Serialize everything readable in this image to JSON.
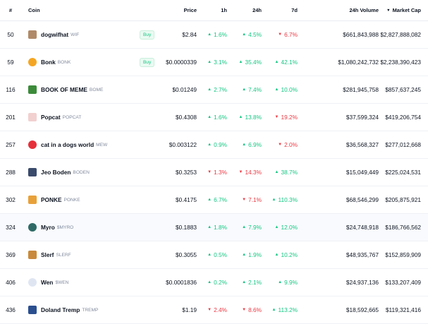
{
  "header": {
    "rank": "#",
    "coin": "Coin",
    "price": "Price",
    "h1": "1h",
    "h24": "24h",
    "d7": "7d",
    "volume": "24h Volume",
    "mcap": "Market Cap",
    "sort_icon": "triangle-down-icon"
  },
  "colors": {
    "up": "#16c784",
    "down": "#ea3943",
    "buy": "#16c784"
  },
  "rows": [
    {
      "rank": "50",
      "name": "dogwifhat",
      "symbol": "WIF",
      "buy": "Buy",
      "price": "$2.84",
      "h1": "1.6%",
      "h1_dir": "up",
      "h24": "4.5%",
      "h24_dir": "up",
      "d7": "6.7%",
      "d7_dir": "down",
      "volume": "$661,843,988",
      "mcap": "$2,827,888,082",
      "icon_color": "#b08a68",
      "icon": "dog-hat-icon"
    },
    {
      "rank": "59",
      "name": "Bonk",
      "symbol": "BONK",
      "buy": "Buy",
      "price": "$0.0000339",
      "h1": "3.1%",
      "h1_dir": "up",
      "h24": "35.4%",
      "h24_dir": "up",
      "d7": "42.1%",
      "d7_dir": "up",
      "volume": "$1,080,242,732",
      "mcap": "$2,238,390,423",
      "icon_color": "#f4a623",
      "icon": "bonk-dog-icon"
    },
    {
      "rank": "116",
      "name": "BOOK OF MEME",
      "symbol": "BOME",
      "price": "$0.01249",
      "h1": "2.7%",
      "h1_dir": "up",
      "h24": "7.4%",
      "h24_dir": "up",
      "d7": "10.0%",
      "d7_dir": "up",
      "volume": "$281,945,758",
      "mcap": "$857,637,245",
      "icon_color": "#3c8b3a",
      "icon": "pepe-book-icon"
    },
    {
      "rank": "201",
      "name": "Popcat",
      "symbol": "POPCAT",
      "price": "$0.4308",
      "h1": "1.6%",
      "h1_dir": "up",
      "h24": "13.8%",
      "h24_dir": "up",
      "d7": "19.2%",
      "d7_dir": "down",
      "volume": "$37,599,324",
      "mcap": "$419,206,754",
      "icon_color": "#f2d0d0",
      "icon": "pop-cat-icon"
    },
    {
      "rank": "257",
      "name": "cat in a dogs world",
      "symbol": "MEW",
      "price": "$0.003122",
      "h1": "0.9%",
      "h1_dir": "up",
      "h24": "6.9%",
      "h24_dir": "up",
      "d7": "2.0%",
      "d7_dir": "down",
      "volume": "$36,568,327",
      "mcap": "$277,012,668",
      "icon_color": "#e5303a",
      "icon": "mew-cat-icon"
    },
    {
      "rank": "288",
      "name": "Jeo Boden",
      "symbol": "BODEN",
      "price": "$0.3253",
      "h1": "1.3%",
      "h1_dir": "down",
      "h24": "14.3%",
      "h24_dir": "down",
      "d7": "38.7%",
      "d7_dir": "up",
      "volume": "$15,049,449",
      "mcap": "$225,024,531",
      "icon_color": "#3a4a6b",
      "icon": "boden-portrait-icon"
    },
    {
      "rank": "302",
      "name": "PONKE",
      "symbol": "PONKE",
      "price": "$0.4175",
      "h1": "6.7%",
      "h1_dir": "up",
      "h24": "7.1%",
      "h24_dir": "down",
      "d7": "110.3%",
      "d7_dir": "up",
      "volume": "$68,546,299",
      "mcap": "$205,875,921",
      "icon_color": "#e8a13a",
      "icon": "ponke-monkey-icon"
    },
    {
      "rank": "324",
      "name": "Myro",
      "symbol": "$MYRO",
      "price": "$0.1883",
      "h1": "1.8%",
      "h1_dir": "up",
      "h24": "7.9%",
      "h24_dir": "up",
      "d7": "12.0%",
      "d7_dir": "up",
      "volume": "$24,748,918",
      "mcap": "$186,766,562",
      "icon_color": "#2f6a66",
      "icon": "myro-dog-icon"
    },
    {
      "rank": "369",
      "name": "Slerf",
      "symbol": "SLERF",
      "price": "$0.3055",
      "h1": "0.5%",
      "h1_dir": "up",
      "h24": "1.9%",
      "h24_dir": "up",
      "d7": "10.2%",
      "d7_dir": "up",
      "volume": "$48,935,767",
      "mcap": "$152,859,909",
      "icon_color": "#c98a3b",
      "icon": "slerf-sloth-icon"
    },
    {
      "rank": "406",
      "name": "Wen",
      "symbol": "$WEN",
      "price": "$0.0001836",
      "h1": "0.2%",
      "h1_dir": "up",
      "h24": "2.1%",
      "h24_dir": "up",
      "d7": "9.9%",
      "d7_dir": "up",
      "volume": "$24,937,136",
      "mcap": "$133,207,409",
      "icon_color": "#dfe6f2",
      "icon": "wen-cat-icon"
    },
    {
      "rank": "436",
      "name": "Doland Tremp",
      "symbol": "TREMP",
      "price": "$1.19",
      "h1": "2.4%",
      "h1_dir": "down",
      "h24": "8.6%",
      "h24_dir": "down",
      "d7": "113.2%",
      "d7_dir": "up",
      "volume": "$18,592,665",
      "mcap": "$119,321,416",
      "icon_color": "#2b4f8f",
      "icon": "tremp-portrait-icon"
    }
  ]
}
